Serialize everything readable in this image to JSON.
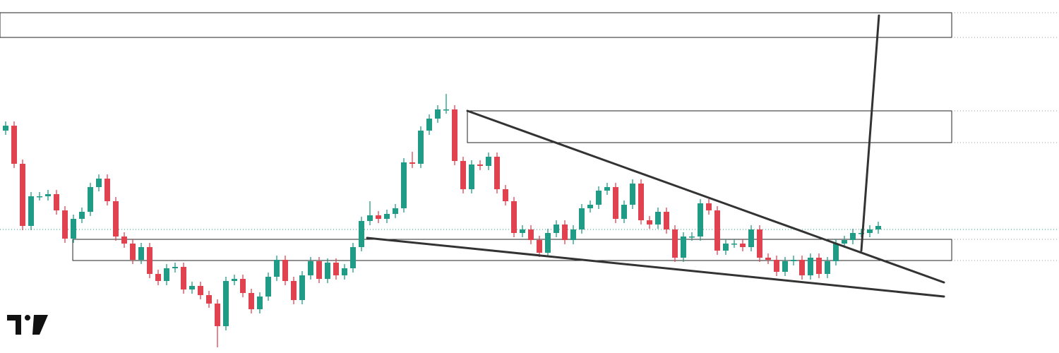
{
  "chart_data": {
    "type": "candlestick",
    "up_color": "#1f9b86",
    "down_color": "#e0434f",
    "xlim": [
      -0.667,
      124.333
    ],
    "ylim": [
      0,
      500
    ],
    "ohlc": [
      [
        315,
        328,
        309,
        322
      ],
      [
        322,
        328,
        262,
        268
      ],
      [
        268,
        274,
        174,
        180
      ],
      [
        180,
        228,
        174,
        222
      ],
      [
        222,
        228,
        216,
        222
      ],
      [
        222,
        231,
        216,
        225
      ],
      [
        225,
        231,
        196,
        202
      ],
      [
        202,
        208,
        156,
        162
      ],
      [
        162,
        196,
        156,
        190
      ],
      [
        190,
        206,
        184,
        200
      ],
      [
        200,
        241,
        194,
        235
      ],
      [
        235,
        253,
        229,
        247
      ],
      [
        247,
        253,
        209,
        215
      ],
      [
        215,
        221,
        159,
        165
      ],
      [
        165,
        171,
        149,
        155
      ],
      [
        155,
        161,
        126,
        132
      ],
      [
        132,
        156,
        126,
        150
      ],
      [
        150,
        156,
        106,
        112
      ],
      [
        112,
        118,
        96,
        102
      ],
      [
        102,
        126,
        96,
        120
      ],
      [
        120,
        128,
        114,
        122
      ],
      [
        122,
        128,
        84,
        90
      ],
      [
        90,
        101,
        84,
        95
      ],
      [
        95,
        101,
        76,
        82
      ],
      [
        82,
        88,
        64,
        70
      ],
      [
        70,
        76,
        8,
        38
      ],
      [
        38,
        108,
        32,
        102
      ],
      [
        102,
        111,
        96,
        105
      ],
      [
        105,
        111,
        79,
        85
      ],
      [
        85,
        91,
        56,
        62
      ],
      [
        62,
        86,
        56,
        80
      ],
      [
        80,
        114,
        74,
        108
      ],
      [
        108,
        138,
        102,
        132
      ],
      [
        132,
        138,
        96,
        102
      ],
      [
        102,
        108,
        69,
        75
      ],
      [
        75,
        116,
        69,
        110
      ],
      [
        110,
        136,
        104,
        130
      ],
      [
        130,
        136,
        99,
        105
      ],
      [
        105,
        134,
        99,
        128
      ],
      [
        128,
        134,
        104,
        110
      ],
      [
        110,
        126,
        104,
        120
      ],
      [
        120,
        156,
        114,
        150
      ],
      [
        150,
        193,
        144,
        187
      ],
      [
        187,
        215,
        181,
        195
      ],
      [
        195,
        201,
        184,
        190
      ],
      [
        190,
        203,
        184,
        197
      ],
      [
        197,
        211,
        191,
        205
      ],
      [
        205,
        276,
        199,
        270
      ],
      [
        270,
        285,
        262,
        268
      ],
      [
        268,
        321,
        262,
        315
      ],
      [
        315,
        338,
        309,
        332
      ],
      [
        332,
        351,
        326,
        345
      ],
      [
        345,
        367,
        339,
        345
      ],
      [
        345,
        351,
        266,
        272
      ],
      [
        272,
        278,
        226,
        232
      ],
      [
        232,
        273,
        226,
        267
      ],
      [
        267,
        273,
        259,
        265
      ],
      [
        265,
        284,
        259,
        278
      ],
      [
        278,
        284,
        226,
        232
      ],
      [
        232,
        238,
        209,
        215
      ],
      [
        215,
        221,
        164,
        170
      ],
      [
        170,
        181,
        164,
        175
      ],
      [
        175,
        181,
        154,
        160
      ],
      [
        160,
        166,
        136,
        142
      ],
      [
        142,
        176,
        136,
        170
      ],
      [
        170,
        188,
        164,
        182
      ],
      [
        182,
        188,
        154,
        160
      ],
      [
        160,
        181,
        154,
        175
      ],
      [
        175,
        211,
        169,
        205
      ],
      [
        205,
        216,
        199,
        210
      ],
      [
        210,
        236,
        204,
        230
      ],
      [
        230,
        241,
        224,
        235
      ],
      [
        235,
        241,
        184,
        190
      ],
      [
        190,
        216,
        184,
        210
      ],
      [
        210,
        246,
        204,
        240
      ],
      [
        240,
        246,
        182,
        188
      ],
      [
        188,
        194,
        176,
        182
      ],
      [
        182,
        206,
        176,
        200
      ],
      [
        200,
        206,
        169,
        175
      ],
      [
        175,
        181,
        129,
        135
      ],
      [
        135,
        171,
        129,
        165
      ],
      [
        165,
        171,
        159,
        165
      ],
      [
        165,
        218,
        159,
        212
      ],
      [
        212,
        218,
        196,
        202
      ],
      [
        202,
        208,
        139,
        145
      ],
      [
        145,
        161,
        139,
        155
      ],
      [
        155,
        161,
        149,
        155
      ],
      [
        155,
        161,
        144,
        150
      ],
      [
        150,
        181,
        144,
        175
      ],
      [
        175,
        181,
        129,
        135
      ],
      [
        135,
        141,
        126,
        132
      ],
      [
        132,
        138,
        109,
        115
      ],
      [
        115,
        136,
        109,
        130
      ],
      [
        130,
        138,
        124,
        132
      ],
      [
        132,
        138,
        104,
        110
      ],
      [
        110,
        141,
        104,
        135
      ],
      [
        135,
        141,
        106,
        112
      ],
      [
        112,
        136,
        106,
        130
      ],
      [
        130,
        161,
        124,
        155
      ],
      [
        155,
        166,
        149,
        160
      ],
      [
        160,
        176,
        154,
        170
      ],
      [
        170,
        176,
        164,
        170
      ],
      [
        170,
        181,
        164,
        175
      ],
      [
        175,
        186,
        169,
        180
      ]
    ],
    "zones": [
      {
        "x": [
          -0.667,
          111.67
        ],
        "y": [
          447,
          482
        ]
      },
      {
        "x": [
          54.5,
          111.67
        ],
        "y": [
          298,
          343
        ]
      },
      {
        "x": [
          7.92,
          111.67
        ],
        "y": [
          131,
          161
        ]
      }
    ],
    "trendlines": [
      {
        "x": [
          54.5,
          110.75
        ],
        "y": [
          343,
          100
        ]
      },
      {
        "x": [
          42.67,
          110.75
        ],
        "y": [
          163,
          80
        ]
      },
      {
        "x": [
          101,
          103.08
        ],
        "y": [
          145,
          478
        ]
      }
    ],
    "price_line": 175
  }
}
